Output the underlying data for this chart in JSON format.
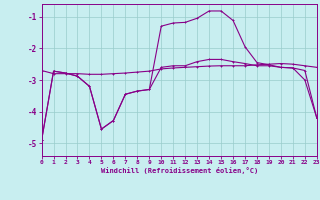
{
  "bg_color": "#c8eef0",
  "line_color": "#880088",
  "grid_color": "#99cccc",
  "xlabel": "Windchill (Refroidissement éolien,°C)",
  "xlim": [
    0,
    23
  ],
  "ylim": [
    -5.4,
    -0.6
  ],
  "yticks": [
    -5,
    -4,
    -3,
    -2,
    -1
  ],
  "xticks": [
    0,
    1,
    2,
    3,
    4,
    5,
    6,
    7,
    8,
    9,
    10,
    11,
    12,
    13,
    14,
    15,
    16,
    17,
    18,
    19,
    20,
    21,
    22,
    23
  ],
  "line1_y": [
    -2.7,
    -2.8,
    -2.8,
    -2.8,
    -2.82,
    -2.82,
    -2.8,
    -2.78,
    -2.75,
    -2.72,
    -2.65,
    -2.62,
    -2.6,
    -2.58,
    -2.56,
    -2.55,
    -2.55,
    -2.55,
    -2.52,
    -2.5,
    -2.48,
    -2.5,
    -2.55,
    -2.6
  ],
  "line2_y": [
    -4.9,
    -2.72,
    -2.78,
    -2.88,
    -3.2,
    -4.55,
    -4.28,
    -3.45,
    -3.35,
    -3.3,
    -2.6,
    -2.55,
    -2.55,
    -2.42,
    -2.35,
    -2.35,
    -2.42,
    -2.48,
    -2.55,
    -2.55,
    -2.6,
    -2.62,
    -2.7,
    -4.2
  ],
  "line3_y": [
    -4.9,
    -2.72,
    -2.78,
    -2.88,
    -3.2,
    -4.55,
    -4.28,
    -3.45,
    -3.35,
    -3.3,
    -1.3,
    -1.2,
    -1.18,
    -1.05,
    -0.82,
    -0.82,
    -1.12,
    -1.95,
    -2.45,
    -2.52,
    -2.6,
    -2.62,
    -3.0,
    -4.2
  ]
}
